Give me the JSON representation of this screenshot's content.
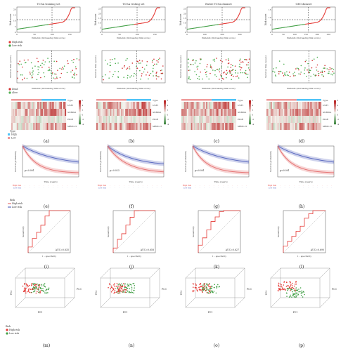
{
  "colors": {
    "high": "#e53935",
    "low": "#43a047",
    "dead": "#d32f2f",
    "alive": "#4caf50",
    "heat_high": "#b71c1c",
    "heat_mid": "#f5f5f0",
    "heat_low": "#2e7d32",
    "km_high": "#e57373",
    "km_low": "#5c6bc0",
    "roc": "#e53935",
    "type_high": "#4fc3f7",
    "type_low": "#ef9a9a"
  },
  "panel_labels": [
    "(a)",
    "(b)",
    "(c)",
    "(d)",
    "(e)",
    "(f)",
    "(g)",
    "(h)",
    "(i)",
    "(j)",
    "(k)",
    "(l)",
    "(m)",
    "(n)",
    "(o)",
    "(p)"
  ],
  "chart_data": [
    {
      "panel": "a",
      "type": "line",
      "title": "TCGA training set",
      "ylabel": "Risk score",
      "xlabel": "Patients (increasing risk score)",
      "xticks": [
        0,
        50,
        100,
        150
      ],
      "xlim": [
        0,
        180
      ],
      "yticks": [
        0,
        5,
        10,
        15,
        20
      ],
      "ylim": [
        0,
        22
      ],
      "cutoff": 100
    },
    {
      "panel": "b",
      "type": "line",
      "title": "TCGA testing set",
      "ylabel": "Risk score",
      "xlabel": "Patients (increasing risk score)",
      "xticks": [
        0,
        50,
        100,
        150
      ],
      "xlim": [
        0,
        180
      ],
      "yticks": [
        0,
        5,
        10,
        15,
        20,
        25
      ],
      "ylim": [
        0,
        27
      ],
      "cutoff": 100
    },
    {
      "panel": "c",
      "type": "line",
      "title": "Entire TCGA dataset",
      "ylabel": "Risk score",
      "xlabel": "Patients (increasing risk score)",
      "xticks": [
        0,
        100,
        200,
        300
      ],
      "xlim": [
        0,
        360
      ],
      "yticks": [
        0,
        5,
        10,
        15,
        20,
        25
      ],
      "ylim": [
        0,
        27
      ],
      "cutoff": 200
    },
    {
      "panel": "d",
      "type": "line",
      "title": "GEO dataset",
      "ylabel": "Risk score",
      "xlabel": "Patients (increasing risk score)",
      "xticks": [
        0,
        50,
        100,
        150,
        200,
        250
      ],
      "xlim": [
        0,
        280
      ],
      "yticks": [
        0,
        5,
        10,
        15
      ],
      "ylim": [
        0,
        17
      ],
      "cutoff": 160
    },
    {
      "panel": "a-d",
      "type": "scatter",
      "ylabel": "Survival time (years)",
      "xlabel": "Patients (increasing risk score)",
      "legend": [
        "Dead",
        "Alive"
      ]
    },
    {
      "panel": "a-d",
      "type": "heatmap",
      "genes": [
        "USF1",
        "SNRPA1",
        "PIGR",
        "MRPL15"
      ],
      "annotation": "Type",
      "legend_title": "Type",
      "legend": [
        "High",
        "Low"
      ],
      "scale_ticks": [
        "6",
        "4",
        "2",
        "0",
        "-2",
        "-4"
      ]
    },
    {
      "panel": "e-h",
      "type": "line",
      "ylabel": "Survival probability",
      "xlabel": "Time (years)",
      "pvalues": [
        "p<0.001",
        "p=0.023",
        "p<0.001",
        "p<0.001"
      ],
      "legend_title": "Risk",
      "legend": [
        "High risk",
        "Low risk"
      ],
      "table_rows": [
        "High risk",
        "Low risk"
      ]
    },
    {
      "panel": "i-l",
      "type": "line",
      "ylabel": "Sensitivity",
      "xlabel": "1 - specificity",
      "auc": [
        "AUC=0.835",
        "AUC=0.658",
        "AUC=0.627",
        "AUC=0.690"
      ]
    },
    {
      "panel": "m-p",
      "type": "scatter",
      "axes": [
        "PC1",
        "PC2",
        "PC3"
      ],
      "legend_title": "Risk",
      "legend": [
        "High risk",
        "Low risk"
      ]
    }
  ]
}
